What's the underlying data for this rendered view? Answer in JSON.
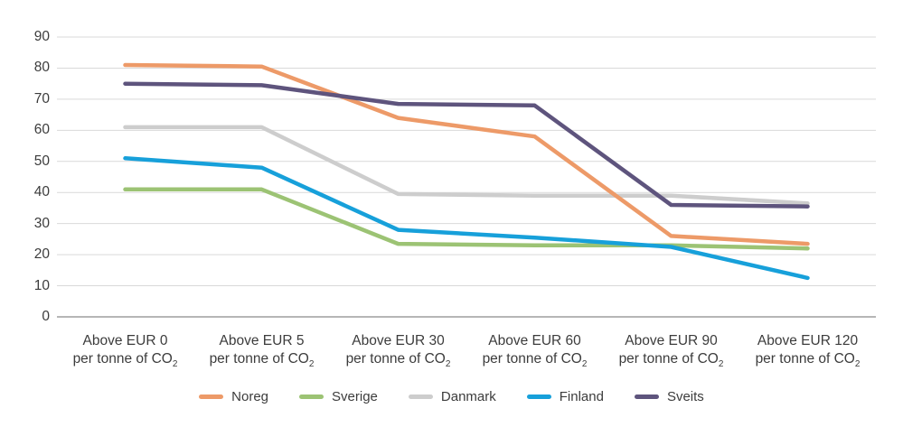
{
  "chart_data": {
    "type": "line",
    "title": "",
    "xlabel": "",
    "ylabel": "",
    "ylim": [
      0,
      90
    ],
    "yticks": [
      0,
      10,
      20,
      30,
      40,
      50,
      60,
      70,
      80,
      90
    ],
    "grid": true,
    "legend_position": "bottom",
    "categories": [
      {
        "line1": "Above EUR 0",
        "line2": "per tonne of CO",
        "sub": "2"
      },
      {
        "line1": "Above EUR 5",
        "line2": "per tonne of CO",
        "sub": "2"
      },
      {
        "line1": "Above EUR 30",
        "line2": "per tonne of CO",
        "sub": "2"
      },
      {
        "line1": "Above EUR 60",
        "line2": "per tonne of CO",
        "sub": "2"
      },
      {
        "line1": "Above EUR 90",
        "line2": "per tonne of CO",
        "sub": "2"
      },
      {
        "line1": "Above EUR 120",
        "line2": "per tonne of CO",
        "sub": "2"
      }
    ],
    "series": [
      {
        "name": "Noreg",
        "color": "#ED9A68",
        "values": [
          81,
          80.5,
          64,
          58,
          26,
          23.5
        ]
      },
      {
        "name": "Sverige",
        "color": "#9CC374",
        "values": [
          41,
          41,
          23.5,
          23,
          23,
          22
        ]
      },
      {
        "name": "Danmark",
        "color": "#CDCDCD",
        "values": [
          61,
          61,
          39.5,
          39,
          39,
          36.5
        ]
      },
      {
        "name": "Finland",
        "color": "#17A0DA",
        "values": [
          51,
          48,
          28,
          25.5,
          22.5,
          12.5
        ]
      },
      {
        "name": "Sveits",
        "color": "#5E547D",
        "values": [
          75,
          74.5,
          68.5,
          68,
          36,
          35.5
        ]
      }
    ],
    "colors": {
      "gridline": "#D9D9D9",
      "axis": "#9E9E9E",
      "text": "#3C3C3C"
    }
  }
}
